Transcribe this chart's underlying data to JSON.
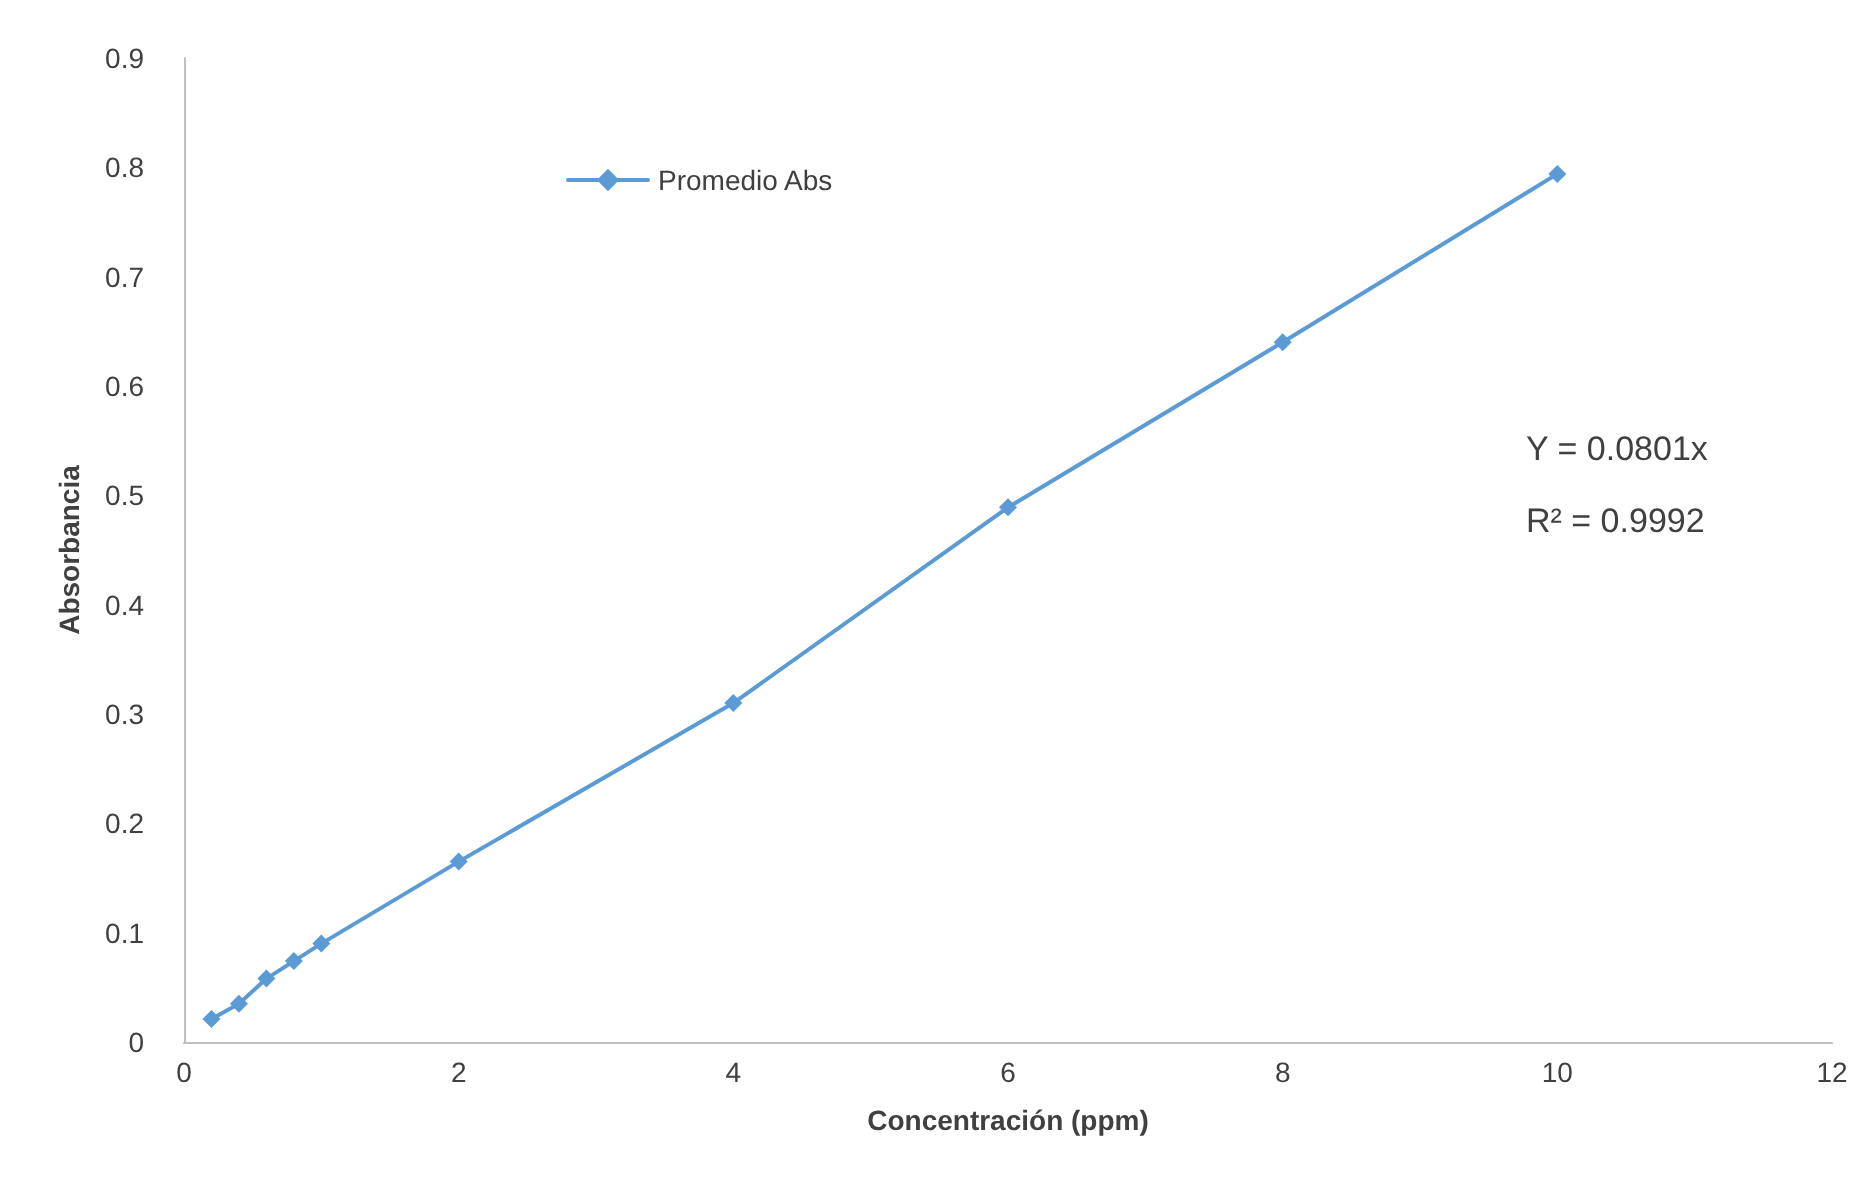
{
  "chart_data": {
    "type": "line",
    "xlabel": "Concentración (ppm)",
    "ylabel": "Absorbancia",
    "x": [
      0.2,
      0.4,
      0.6,
      0.8,
      1,
      2,
      4,
      6,
      8,
      10
    ],
    "series": [
      {
        "name": "Promedio Abs",
        "color": "#5b9bd5",
        "values": [
          0.021,
          0.035,
          0.058,
          0.074,
          0.09,
          0.165,
          0.31,
          0.489,
          0.64,
          0.794
        ]
      }
    ],
    "xlim": [
      0,
      12
    ],
    "xticks": [
      0,
      2,
      4,
      6,
      8,
      10,
      12
    ],
    "ylim": [
      0,
      0.9
    ],
    "yticks": [
      0,
      0.1,
      0.2,
      0.3,
      0.4,
      0.5,
      0.6,
      0.7,
      0.8,
      0.9
    ],
    "annotations": [
      "Y = 0.0801x",
      "R² = 0.9992"
    ],
    "grid": false,
    "legend": "top left",
    "marker": "diamond",
    "line_style": "solid"
  }
}
